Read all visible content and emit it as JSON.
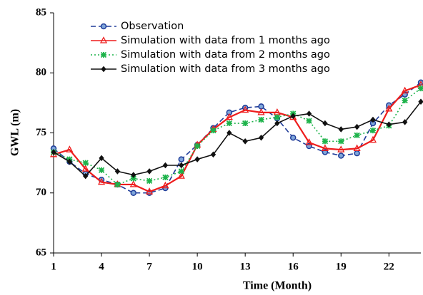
{
  "chart_data": {
    "type": "line",
    "x_label": "Time (Month)",
    "y_label": "GWL (m)",
    "x": [
      1,
      2,
      3,
      4,
      5,
      6,
      7,
      8,
      9,
      10,
      11,
      12,
      13,
      14,
      15,
      16,
      17,
      18,
      19,
      20,
      21,
      22,
      23,
      24
    ],
    "xlim": [
      1,
      24
    ],
    "xticks": [
      1,
      4,
      7,
      10,
      13,
      16,
      19,
      22
    ],
    "ylim": [
      65,
      85
    ],
    "yticks": [
      65,
      70,
      75,
      80,
      85
    ],
    "legend": "upper left",
    "series": [
      {
        "name": "Observation",
        "color": "#1f3c99",
        "dash": "dashed",
        "marker": "circle",
        "values": [
          73.7,
          72.6,
          71.6,
          71.1,
          70.7,
          70.0,
          70.0,
          70.4,
          72.8,
          74.0,
          75.4,
          76.7,
          77.1,
          77.2,
          76.2,
          74.6,
          73.9,
          73.4,
          73.1,
          73.3,
          75.8,
          77.3,
          78.2,
          79.2
        ]
      },
      {
        "name": "Simulation with data from 1 months ago",
        "color": "#ee1c1c",
        "dash": "solid",
        "marker": "triangle",
        "values": [
          73.2,
          73.6,
          72.0,
          70.9,
          70.7,
          70.7,
          70.1,
          70.6,
          71.4,
          74.0,
          75.3,
          76.3,
          76.9,
          76.7,
          76.7,
          76.3,
          74.2,
          73.7,
          73.6,
          73.7,
          74.4,
          77.0,
          78.5,
          79.0
        ]
      },
      {
        "name": "Simulation with data from 2 months ago",
        "color": "#1db34a",
        "dash": "dotted",
        "marker": "star",
        "values": [
          73.4,
          72.8,
          72.5,
          71.9,
          70.7,
          71.2,
          71.0,
          71.3,
          71.8,
          73.9,
          75.2,
          75.8,
          75.8,
          76.1,
          76.3,
          76.6,
          76.0,
          74.3,
          74.3,
          74.8,
          75.2,
          75.6,
          77.7,
          78.7
        ]
      },
      {
        "name": "Simulation with data from 3 months ago",
        "color": "#111111",
        "dash": "solid",
        "marker": "diamond",
        "values": [
          73.4,
          72.6,
          71.4,
          72.9,
          71.8,
          71.5,
          71.8,
          72.3,
          72.3,
          72.8,
          73.2,
          75.0,
          74.3,
          74.6,
          75.8,
          76.4,
          76.6,
          75.8,
          75.3,
          75.5,
          76.1,
          75.7,
          75.9,
          77.6
        ]
      }
    ]
  }
}
